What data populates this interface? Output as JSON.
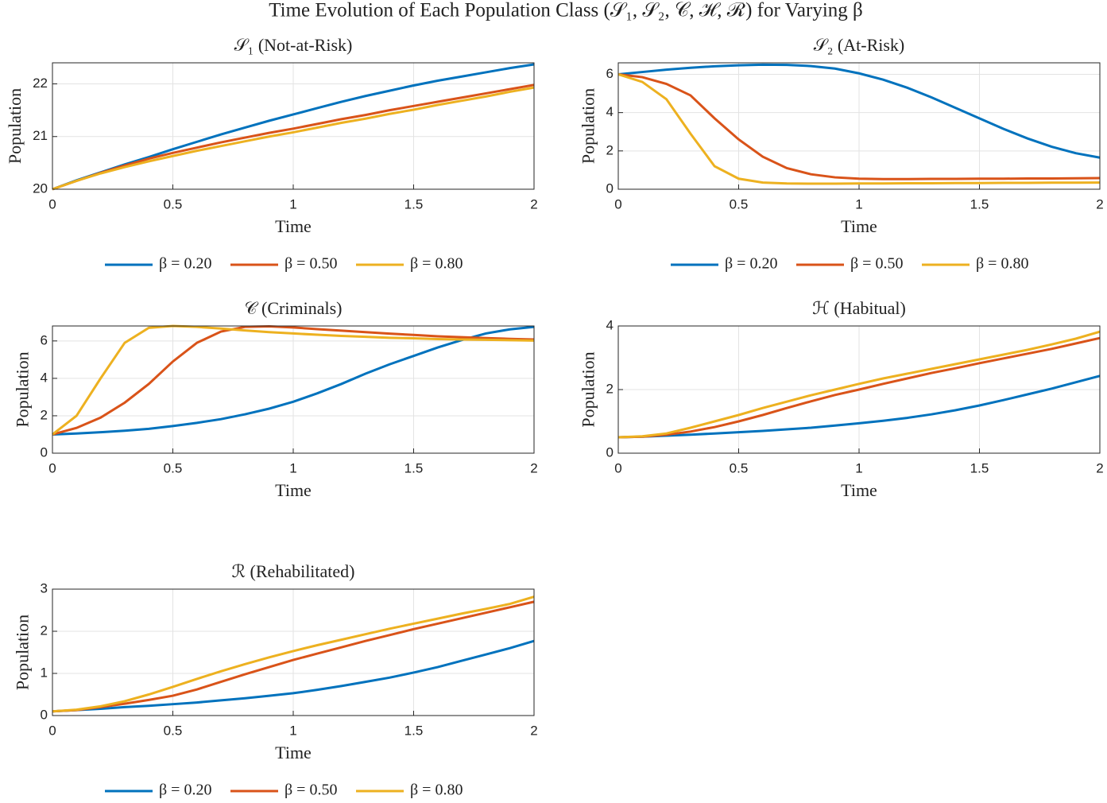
{
  "title": "Time Evolution of Each Population Class (𝒮₁, 𝒮₂, 𝒞, ℋ, ℛ) for Varying β",
  "chart_data": [
    {
      "type": "line",
      "title": "𝒮₁ (Not-at-Risk)",
      "xlabel": "Time",
      "ylabel": "Population",
      "grid": true,
      "legend": "below",
      "x": [
        0,
        0.1,
        0.2,
        0.3,
        0.4,
        0.5,
        0.6,
        0.7,
        0.8,
        0.9,
        1,
        1.1,
        1.2,
        1.3,
        1.4,
        1.5,
        1.6,
        1.7,
        1.8,
        1.9,
        2
      ],
      "xlim": [
        0,
        2
      ],
      "xticks": [
        0,
        0.5,
        1,
        1.5,
        2
      ],
      "ylim": [
        20,
        22.4
      ],
      "yticks": [
        20,
        21,
        22
      ],
      "series": [
        {
          "name": "β = 0.20",
          "color": "#0072BD",
          "values": [
            20.0,
            20.17,
            20.32,
            20.47,
            20.61,
            20.76,
            20.9,
            21.04,
            21.17,
            21.3,
            21.42,
            21.54,
            21.66,
            21.77,
            21.87,
            21.97,
            22.06,
            22.14,
            22.22,
            22.3,
            22.37
          ]
        },
        {
          "name": "β = 0.50",
          "color": "#D95319",
          "values": [
            20.0,
            20.16,
            20.31,
            20.45,
            20.58,
            20.69,
            20.79,
            20.89,
            20.98,
            21.07,
            21.15,
            21.24,
            21.33,
            21.41,
            21.5,
            21.58,
            21.66,
            21.74,
            21.82,
            21.9,
            21.98
          ]
        },
        {
          "name": "β = 0.80",
          "color": "#EDB120",
          "values": [
            20.0,
            20.16,
            20.3,
            20.42,
            20.53,
            20.63,
            20.73,
            20.82,
            20.91,
            21.0,
            21.08,
            21.17,
            21.26,
            21.34,
            21.43,
            21.51,
            21.6,
            21.68,
            21.76,
            21.85,
            21.93
          ]
        }
      ]
    },
    {
      "type": "line",
      "title": "𝒮₂ (At-Risk)",
      "xlabel": "Time",
      "ylabel": "Population",
      "grid": true,
      "legend": "below",
      "x": [
        0,
        0.1,
        0.2,
        0.3,
        0.4,
        0.5,
        0.6,
        0.7,
        0.8,
        0.9,
        1,
        1.1,
        1.2,
        1.3,
        1.4,
        1.5,
        1.6,
        1.7,
        1.8,
        1.9,
        2
      ],
      "xlim": [
        0,
        2
      ],
      "xticks": [
        0,
        0.5,
        1,
        1.5,
        2
      ],
      "ylim": [
        0,
        6.6
      ],
      "yticks": [
        0,
        2,
        4,
        6
      ],
      "series": [
        {
          "name": "β = 0.20",
          "color": "#0072BD",
          "values": [
            6.0,
            6.12,
            6.24,
            6.34,
            6.42,
            6.47,
            6.5,
            6.49,
            6.43,
            6.3,
            6.05,
            5.72,
            5.3,
            4.8,
            4.25,
            3.7,
            3.15,
            2.65,
            2.22,
            1.88,
            1.65
          ]
        },
        {
          "name": "β = 0.50",
          "color": "#D95319",
          "values": [
            6.0,
            5.85,
            5.5,
            4.9,
            3.7,
            2.6,
            1.7,
            1.1,
            0.78,
            0.62,
            0.55,
            0.53,
            0.53,
            0.54,
            0.54,
            0.55,
            0.55,
            0.56,
            0.56,
            0.57,
            0.58
          ]
        },
        {
          "name": "β = 0.80",
          "color": "#EDB120",
          "values": [
            6.0,
            5.6,
            4.7,
            2.9,
            1.2,
            0.55,
            0.35,
            0.3,
            0.29,
            0.29,
            0.3,
            0.3,
            0.31,
            0.31,
            0.32,
            0.32,
            0.33,
            0.33,
            0.34,
            0.34,
            0.35
          ]
        }
      ]
    },
    {
      "type": "line",
      "title": "𝒞 (Criminals)",
      "xlabel": "Time",
      "ylabel": "Population",
      "grid": true,
      "x": [
        0,
        0.1,
        0.2,
        0.3,
        0.4,
        0.5,
        0.6,
        0.7,
        0.8,
        0.9,
        1,
        1.1,
        1.2,
        1.3,
        1.4,
        1.5,
        1.6,
        1.7,
        1.8,
        1.9,
        2
      ],
      "xlim": [
        0,
        2
      ],
      "xticks": [
        0,
        0.5,
        1,
        1.5,
        2
      ],
      "ylim": [
        0,
        6.8
      ],
      "yticks": [
        0,
        2,
        4,
        6
      ],
      "series": [
        {
          "color": "#0072BD",
          "values": [
            1.0,
            1.05,
            1.12,
            1.2,
            1.3,
            1.45,
            1.62,
            1.82,
            2.08,
            2.38,
            2.75,
            3.2,
            3.7,
            4.25,
            4.75,
            5.2,
            5.65,
            6.05,
            6.4,
            6.62,
            6.75
          ]
        },
        {
          "color": "#D95319",
          "values": [
            1.0,
            1.35,
            1.9,
            2.7,
            3.7,
            4.9,
            5.9,
            6.5,
            6.75,
            6.78,
            6.72,
            6.63,
            6.55,
            6.47,
            6.39,
            6.32,
            6.25,
            6.2,
            6.15,
            6.11,
            6.08
          ]
        },
        {
          "color": "#EDB120",
          "values": [
            1.0,
            2.0,
            4.0,
            5.9,
            6.7,
            6.8,
            6.75,
            6.66,
            6.56,
            6.47,
            6.4,
            6.33,
            6.27,
            6.22,
            6.17,
            6.14,
            6.1,
            6.08,
            6.06,
            6.04,
            6.02
          ]
        }
      ]
    },
    {
      "type": "line",
      "title": "ℋ (Habitual)",
      "xlabel": "Time",
      "ylabel": "Population",
      "grid": true,
      "x": [
        0,
        0.1,
        0.2,
        0.3,
        0.4,
        0.5,
        0.6,
        0.7,
        0.8,
        0.9,
        1,
        1.1,
        1.2,
        1.3,
        1.4,
        1.5,
        1.6,
        1.7,
        1.8,
        1.9,
        2
      ],
      "xlim": [
        0,
        2
      ],
      "xticks": [
        0,
        0.5,
        1,
        1.5,
        2
      ],
      "ylim": [
        0,
        4
      ],
      "yticks": [
        0,
        2,
        4
      ],
      "series": [
        {
          "color": "#0072BD",
          "values": [
            0.5,
            0.52,
            0.55,
            0.58,
            0.62,
            0.66,
            0.7,
            0.75,
            0.8,
            0.87,
            0.94,
            1.02,
            1.11,
            1.22,
            1.35,
            1.5,
            1.67,
            1.85,
            2.03,
            2.23,
            2.43
          ]
        },
        {
          "color": "#D95319",
          "values": [
            0.5,
            0.52,
            0.58,
            0.68,
            0.82,
            1.0,
            1.2,
            1.42,
            1.63,
            1.83,
            2.0,
            2.18,
            2.35,
            2.52,
            2.67,
            2.83,
            2.98,
            3.13,
            3.28,
            3.45,
            3.62
          ]
        },
        {
          "color": "#EDB120",
          "values": [
            0.5,
            0.53,
            0.62,
            0.8,
            1.0,
            1.2,
            1.42,
            1.62,
            1.82,
            2.0,
            2.18,
            2.35,
            2.5,
            2.65,
            2.8,
            2.95,
            3.1,
            3.25,
            3.42,
            3.6,
            3.82
          ]
        }
      ]
    },
    {
      "type": "line",
      "title": "ℛ (Rehabilitated)",
      "xlabel": "Time",
      "ylabel": "Population",
      "grid": true,
      "legend": "below",
      "x": [
        0,
        0.1,
        0.2,
        0.3,
        0.4,
        0.5,
        0.6,
        0.7,
        0.8,
        0.9,
        1,
        1.1,
        1.2,
        1.3,
        1.4,
        1.5,
        1.6,
        1.7,
        1.8,
        1.9,
        2
      ],
      "xlim": [
        0,
        2
      ],
      "xticks": [
        0,
        0.5,
        1,
        1.5,
        2
      ],
      "ylim": [
        0,
        3
      ],
      "yticks": [
        0,
        1,
        2,
        3
      ],
      "series": [
        {
          "name": "β = 0.20",
          "color": "#0072BD",
          "values": [
            0.1,
            0.13,
            0.16,
            0.2,
            0.23,
            0.27,
            0.31,
            0.36,
            0.41,
            0.47,
            0.53,
            0.61,
            0.7,
            0.8,
            0.9,
            1.02,
            1.15,
            1.3,
            1.45,
            1.6,
            1.77
          ]
        },
        {
          "name": "β = 0.50",
          "color": "#D95319",
          "values": [
            0.1,
            0.13,
            0.2,
            0.28,
            0.37,
            0.47,
            0.62,
            0.8,
            0.98,
            1.15,
            1.32,
            1.47,
            1.62,
            1.77,
            1.91,
            2.05,
            2.18,
            2.31,
            2.44,
            2.57,
            2.7
          ]
        },
        {
          "name": "β = 0.80",
          "color": "#EDB120",
          "values": [
            0.1,
            0.14,
            0.22,
            0.34,
            0.5,
            0.68,
            0.87,
            1.05,
            1.22,
            1.38,
            1.53,
            1.67,
            1.8,
            1.93,
            2.06,
            2.18,
            2.3,
            2.42,
            2.53,
            2.65,
            2.82
          ]
        }
      ]
    }
  ]
}
